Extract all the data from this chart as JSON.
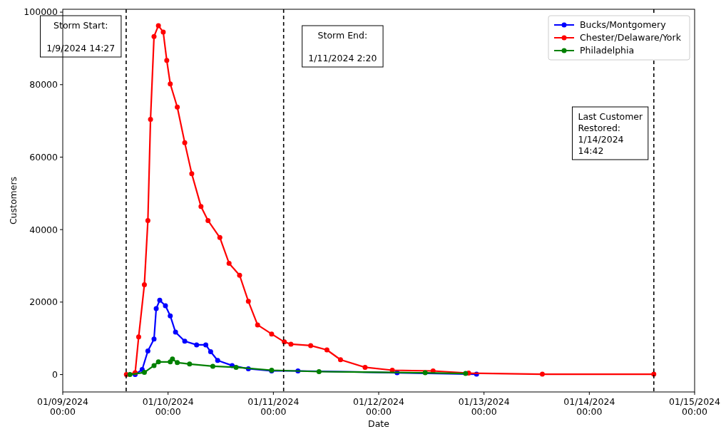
{
  "chart_data": {
    "type": "line",
    "xlabel": "Date",
    "ylabel": "Customers",
    "xlim": [
      "2024-01-09T00:00",
      "2024-01-15T00:00"
    ],
    "ylim": [
      -4800,
      100800
    ],
    "xticks": [
      {
        "value": "2024-01-09T00:00",
        "label": "01/09/2024\n00:00"
      },
      {
        "value": "2024-01-10T00:00",
        "label": "01/10/2024\n00:00"
      },
      {
        "value": "2024-01-11T00:00",
        "label": "01/11/2024\n00:00"
      },
      {
        "value": "2024-01-12T00:00",
        "label": "01/12/2024\n00:00"
      },
      {
        "value": "2024-01-13T00:00",
        "label": "01/13/2024\n00:00"
      },
      {
        "value": "2024-01-14T00:00",
        "label": "01/14/2024\n00:00"
      },
      {
        "value": "2024-01-15T00:00",
        "label": "01/15/2024\n00:00"
      }
    ],
    "yticks": [
      0,
      20000,
      40000,
      60000,
      80000,
      100000
    ],
    "grid": false,
    "legend": "top right",
    "marker": "circle",
    "line_style": "solid",
    "ref_lines": [
      {
        "axis": "x",
        "value": "2024-01-09T14:27",
        "label": "Storm Start:\n\n1/9/2024 14:27",
        "line_style": "dashed",
        "color": "#000000"
      },
      {
        "axis": "x",
        "value": "2024-01-11T02:20",
        "label": "Storm End:\n\n1/11/2024 2:20",
        "line_style": "dashed",
        "color": "#000000"
      },
      {
        "axis": "x",
        "value": "2024-01-14T14:42",
        "label": "Last Customer\nRestored:\n1/14/2024\n14:42",
        "line_style": "dashed",
        "color": "#000000"
      }
    ],
    "series": [
      {
        "name": "Bucks/Montgomery",
        "color": "#0000ff",
        "x": [
          "2024-01-09T16:30",
          "2024-01-09T18:06",
          "2024-01-09T19:24",
          "2024-01-09T20:48",
          "2024-01-09T21:18",
          "2024-01-09T22:06",
          "2024-01-09T23:24",
          "2024-01-10T00:30",
          "2024-01-10T01:42",
          "2024-01-10T03:48",
          "2024-01-10T06:30",
          "2024-01-10T08:36",
          "2024-01-10T09:42",
          "2024-01-10T11:18",
          "2024-01-10T14:36",
          "2024-01-10T18:18",
          "2024-01-10T23:36",
          "2024-01-11T05:36",
          "2024-01-12T04:12",
          "2024-01-12T22:18"
        ],
        "values": [
          0,
          1400,
          6500,
          9800,
          18200,
          20500,
          19000,
          16200,
          11700,
          9200,
          8200,
          8200,
          6300,
          3900,
          2500,
          1600,
          1000,
          1000,
          500,
          100
        ]
      },
      {
        "name": "Chester/Delaware/York",
        "color": "#ff0000",
        "x": [
          "2024-01-09T14:30",
          "2024-01-09T16:30",
          "2024-01-09T17:18",
          "2024-01-09T18:36",
          "2024-01-09T19:24",
          "2024-01-09T20:00",
          "2024-01-09T20:48",
          "2024-01-09T21:48",
          "2024-01-09T22:54",
          "2024-01-09T23:42",
          "2024-01-10T00:30",
          "2024-01-10T02:06",
          "2024-01-10T03:48",
          "2024-01-10T05:24",
          "2024-01-10T07:30",
          "2024-01-10T09:06",
          "2024-01-10T11:48",
          "2024-01-10T13:54",
          "2024-01-10T16:18",
          "2024-01-10T18:18",
          "2024-01-10T20:24",
          "2024-01-10T23:36",
          "2024-01-11T02:30",
          "2024-01-11T04:00",
          "2024-01-11T08:30",
          "2024-01-11T12:12",
          "2024-01-11T15:18",
          "2024-01-11T20:54",
          "2024-01-12T03:06",
          "2024-01-12T12:24",
          "2024-01-12T20:30",
          "2024-01-13T13:18",
          "2024-01-14T14:42"
        ],
        "values": [
          0,
          500,
          10400,
          24800,
          42500,
          70400,
          93300,
          96300,
          94500,
          86700,
          80200,
          73800,
          64000,
          55400,
          46400,
          42500,
          37800,
          30700,
          27400,
          20200,
          13700,
          11200,
          9000,
          8400,
          8000,
          6800,
          4100,
          2000,
          1200,
          1000,
          400,
          100,
          100
        ]
      },
      {
        "name": "Philadelphia",
        "color": "#008000",
        "x": [
          "2024-01-09T15:18",
          "2024-01-09T18:36",
          "2024-01-09T20:48",
          "2024-01-09T21:48",
          "2024-01-10T00:30",
          "2024-01-10T01:00",
          "2024-01-10T02:06",
          "2024-01-10T04:54",
          "2024-01-10T10:12",
          "2024-01-10T15:30",
          "2024-01-10T23:36",
          "2024-01-11T10:24",
          "2024-01-12T10:36",
          "2024-01-12T19:48"
        ],
        "values": [
          0,
          600,
          2500,
          3500,
          3500,
          4300,
          3300,
          2900,
          2300,
          2000,
          1200,
          800,
          500,
          300
        ]
      }
    ]
  }
}
